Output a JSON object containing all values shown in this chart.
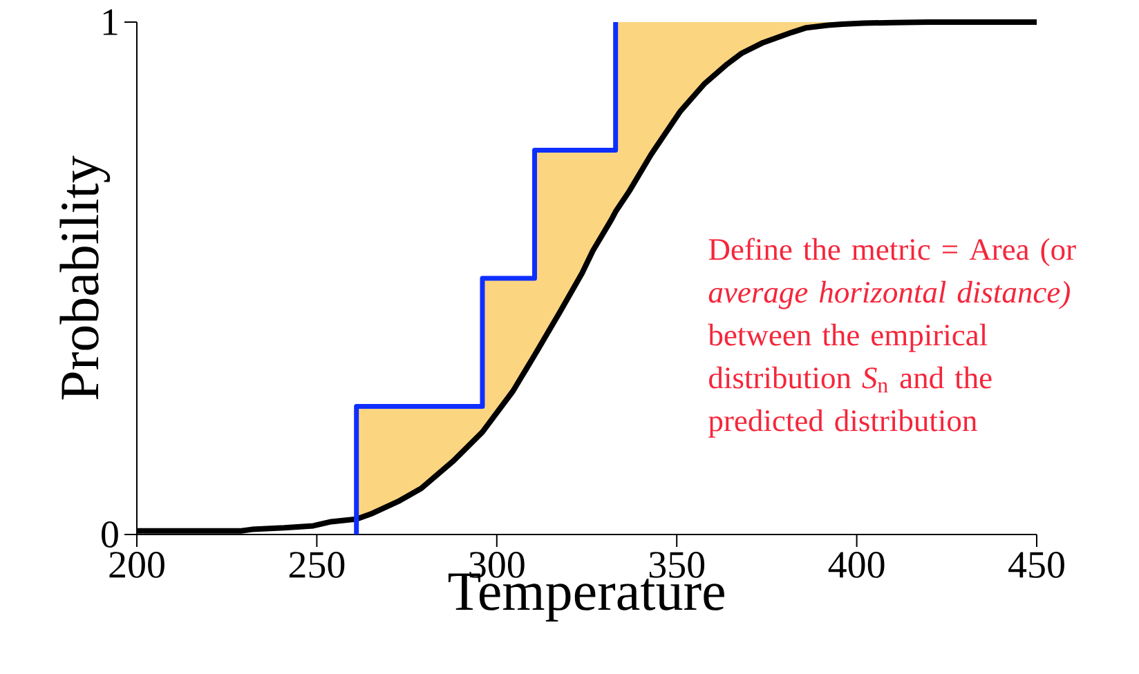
{
  "chart_data": {
    "type": "line",
    "xlabel": "Temperature",
    "ylabel": "Probability",
    "xlim": [
      200,
      450
    ],
    "ylim": [
      0,
      1
    ],
    "xticks": [
      200,
      250,
      300,
      350,
      400,
      450
    ],
    "yticks": [
      0,
      1
    ],
    "series": [
      {
        "type": "line",
        "color": "#000000",
        "x": [
          200,
          229,
          232,
          241,
          249,
          254,
          261,
          261,
          265,
          273,
          279,
          288,
          296,
          296,
          304.5,
          310.5,
          310.5,
          317.6,
          323.7,
          326.7,
          331.8,
          333,
          333,
          336.8,
          342.9,
          351,
          357.6,
          364,
          368,
          374,
          382,
          386,
          392,
          396,
          402,
          410,
          420,
          450
        ],
        "values": [
          0.007,
          0.007,
          0.01,
          0.013,
          0.017,
          0.025,
          0.03,
          0.03,
          0.04,
          0.066,
          0.09,
          0.144,
          0.2,
          0.2,
          0.28,
          0.35,
          0.35,
          0.435,
          0.51,
          0.554,
          0.614,
          0.63,
          0.63,
          0.67,
          0.742,
          0.826,
          0.879,
          0.918,
          0.939,
          0.96,
          0.98,
          0.989,
          0.994,
          0.996,
          0.998,
          0.999,
          1,
          1
        ],
        "lower": [
          0.007,
          0.007,
          0.01,
          0.013,
          0.017,
          0.025,
          0.03,
          0.03,
          0.04,
          0.066,
          0.09,
          0.144,
          0.2,
          0.2,
          0.28,
          0.35,
          0.35,
          0.435,
          0.51,
          0.554,
          0.614,
          0.63,
          0.63,
          0.67,
          0.742,
          0.826,
          0.879,
          0.918,
          0.939,
          0.96,
          0.98,
          0.989,
          0.994,
          0.996,
          0.998,
          0.999,
          1,
          1
        ],
        "upper": [
          0.007,
          0.007,
          0.01,
          0.013,
          0.017,
          0.025,
          0.03,
          0.25,
          0.25,
          0.25,
          0.25,
          0.25,
          0.25,
          0.5,
          0.5,
          0.5,
          0.75,
          0.75,
          0.75,
          0.75,
          0.75,
          0.75,
          1,
          1,
          1,
          1,
          1,
          1,
          1,
          1,
          1,
          1,
          1,
          1,
          1,
          1,
          1,
          1
        ]
      },
      {
        "type": "step",
        "color": "#0f2fff",
        "x": [
          261,
          261,
          296,
          310.5,
          333
        ],
        "values": [
          0,
          0.25,
          0.5,
          0.75,
          1
        ]
      }
    ],
    "annotations": [
      "Define the metric = Area (or *average horizontal distance)* between the empirical distribution *S*$_{n}$ and the predicted distribution"
    ]
  }
}
